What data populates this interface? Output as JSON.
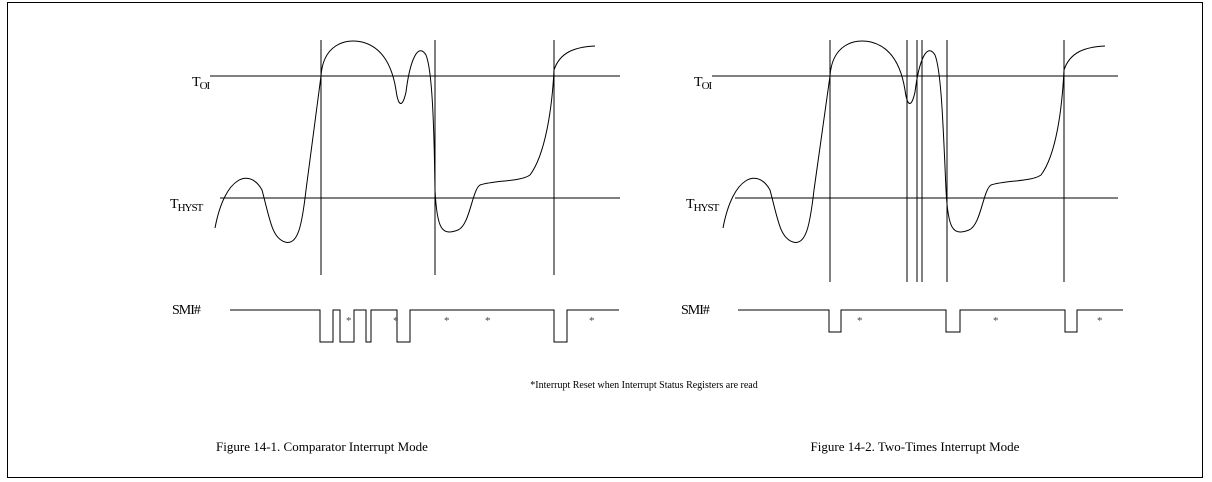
{
  "labels": {
    "toi_main": "T",
    "toi_sub": "OI",
    "thyst_main": "T",
    "thyst_sub": "HYST",
    "smi": "SMI#",
    "star": "*"
  },
  "note": "*Interrupt Reset when Interrupt Status Registers are read",
  "captions": {
    "figure1": "Figure 14-1. Comparator Interrupt Mode",
    "figure2": "Figure 14-2. Two-Times Interrupt Mode"
  }
}
